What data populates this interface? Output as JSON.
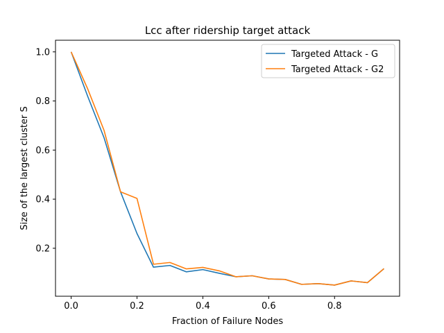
{
  "chart_data": {
    "type": "line",
    "title": "Lcc after ridership target attack",
    "xlabel": "Fraction of Failure Nodes",
    "ylabel": "Size of the largest cluster S",
    "xlim": [
      -0.0475,
      0.9975
    ],
    "ylim": [
      0.0046,
      1.0474
    ],
    "xticks": [
      0.0,
      0.2,
      0.4,
      0.6,
      0.8
    ],
    "xtick_labels": [
      "0.0",
      "0.2",
      "0.4",
      "0.6",
      "0.8"
    ],
    "yticks": [
      0.2,
      0.4,
      0.6,
      0.8,
      1.0
    ],
    "ytick_labels": [
      "0.2",
      "0.4",
      "0.6",
      "0.8",
      "1.0"
    ],
    "grid": false,
    "legend_position": "top-right",
    "x": [
      0.0,
      0.05,
      0.1,
      0.15,
      0.2,
      0.25,
      0.3,
      0.35,
      0.4,
      0.45,
      0.5,
      0.55,
      0.6,
      0.65,
      0.7,
      0.75,
      0.8,
      0.85,
      0.9,
      0.95
    ],
    "series": [
      {
        "name": "Targeted Attack - G",
        "color": "#1f77b4",
        "values": [
          1.0,
          0.82,
          0.65,
          0.43,
          0.26,
          0.123,
          0.13,
          0.104,
          0.113,
          0.098,
          0.084,
          0.088,
          0.075,
          0.073,
          0.053,
          0.056,
          0.05,
          0.067,
          0.06,
          0.117
        ]
      },
      {
        "name": "Targeted Attack - G2",
        "color": "#ff7f0e",
        "values": [
          1.0,
          0.85,
          0.68,
          0.43,
          0.403,
          0.135,
          0.142,
          0.116,
          0.122,
          0.108,
          0.084,
          0.088,
          0.075,
          0.073,
          0.053,
          0.056,
          0.05,
          0.067,
          0.06,
          0.117
        ]
      }
    ]
  }
}
